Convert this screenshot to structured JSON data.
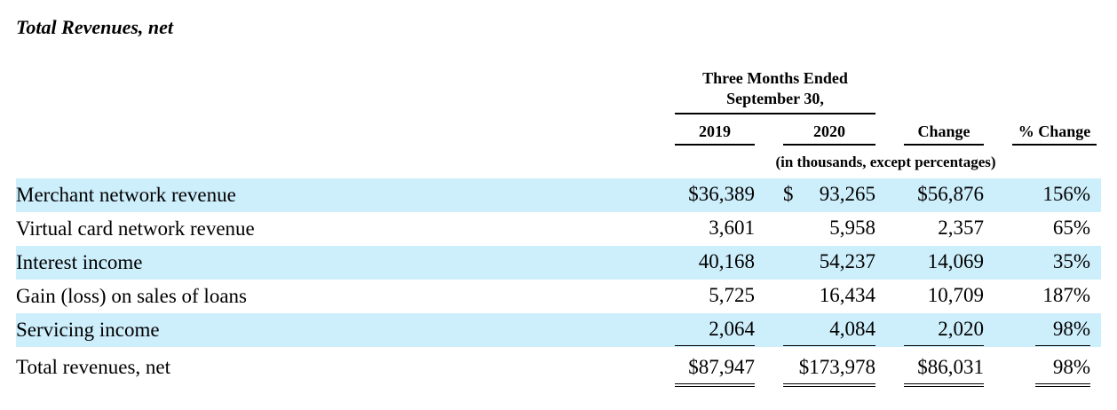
{
  "title": "Total Revenues, net",
  "header": {
    "group_line1": "Three Months Ended",
    "group_line2": "September 30,",
    "col_2019": "2019",
    "col_2020": "2020",
    "col_change": "Change",
    "col_pct": "% Change",
    "units": "(in thousands, except percentages)"
  },
  "rows": [
    {
      "label": "Merchant network revenue",
      "v2019": "$36,389",
      "v2020_cur": "$",
      "v2020": "93,265",
      "change": "$56,876",
      "pct": "156%"
    },
    {
      "label": "Virtual card network revenue",
      "v2019": "3,601",
      "v2020": "5,958",
      "change": "2,357",
      "pct": "65%"
    },
    {
      "label": "Interest income",
      "v2019": "40,168",
      "v2020": "54,237",
      "change": "14,069",
      "pct": "35%"
    },
    {
      "label": "Gain (loss) on sales of loans",
      "v2019": "5,725",
      "v2020": "16,434",
      "change": "10,709",
      "pct": "187%"
    },
    {
      "label": "Servicing income",
      "v2019": "2,064",
      "v2020": "4,084",
      "change": "2,020",
      "pct": "98%"
    },
    {
      "label": "Total revenues, net",
      "v2019": "$87,947",
      "v2020": "$173,978",
      "change": "$86,031",
      "pct": "98%"
    }
  ]
}
